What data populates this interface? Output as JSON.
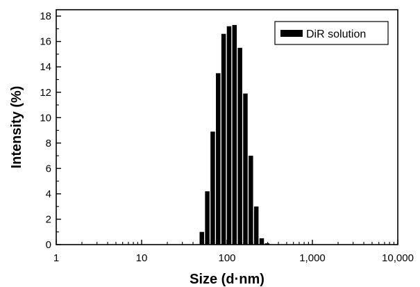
{
  "chart_data": {
    "type": "bar",
    "xlabel": "Size (d·nm)",
    "ylabel": "Intensity (%)",
    "xscale": "log",
    "xlim": [
      1,
      10000
    ],
    "ylim": [
      0,
      18.5
    ],
    "x_ticks": [
      1,
      10,
      100,
      1000,
      10000
    ],
    "x_tick_labels": [
      "1",
      "10",
      "100",
      "1,000",
      "10,000"
    ],
    "y_ticks": [
      0,
      2,
      4,
      6,
      8,
      10,
      12,
      14,
      16,
      18
    ],
    "y_tick_labels": [
      "0",
      "2",
      "4",
      "6",
      "8",
      "10",
      "12",
      "14",
      "16",
      "18"
    ],
    "grid": false,
    "legend_position": "top-right",
    "bar_color": "#000000",
    "series": [
      {
        "name": "DiR solution",
        "x": [
          50.75,
          58.77,
          68.06,
          78.82,
          91.28,
          105.7,
          122.4,
          141.8,
          164.2,
          190.1,
          220.2,
          255.0,
          295.3
        ],
        "values": [
          1.0,
          4.2,
          8.9,
          13.5,
          16.6,
          17.2,
          17.3,
          15.5,
          11.9,
          7.0,
          3.0,
          0.5,
          0.1
        ]
      }
    ]
  }
}
